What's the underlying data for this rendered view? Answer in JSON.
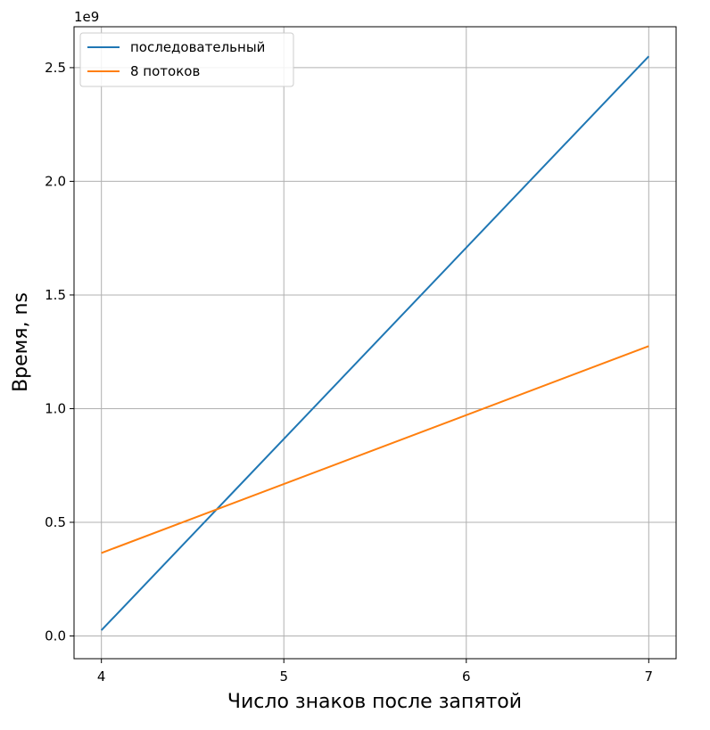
{
  "chart_data": {
    "type": "line",
    "title": "",
    "xlabel": "Число знаков после запятой",
    "ylabel": "Время, ns",
    "y_offset_label": "1e9",
    "xlim": [
      3.85,
      7.15
    ],
    "ylim": [
      -0.1,
      2.68
    ],
    "x_ticks": [
      4,
      5,
      6,
      7
    ],
    "x_tick_labels": [
      "4",
      "5",
      "6",
      "7"
    ],
    "y_ticks": [
      0.0,
      0.5,
      1.0,
      1.5,
      2.0,
      2.5
    ],
    "y_tick_labels": [
      "0.0",
      "0.5",
      "1.0",
      "1.5",
      "2.0",
      "2.5"
    ],
    "grid": true,
    "legend_position": "top-left",
    "x": [
      4,
      7
    ],
    "series": [
      {
        "name": "последовательный",
        "color": "#1f77b4",
        "values": [
          0.025,
          2.55
        ]
      },
      {
        "name": "8 потоков",
        "color": "#ff7f0e",
        "values": [
          0.365,
          1.275
        ]
      }
    ]
  }
}
